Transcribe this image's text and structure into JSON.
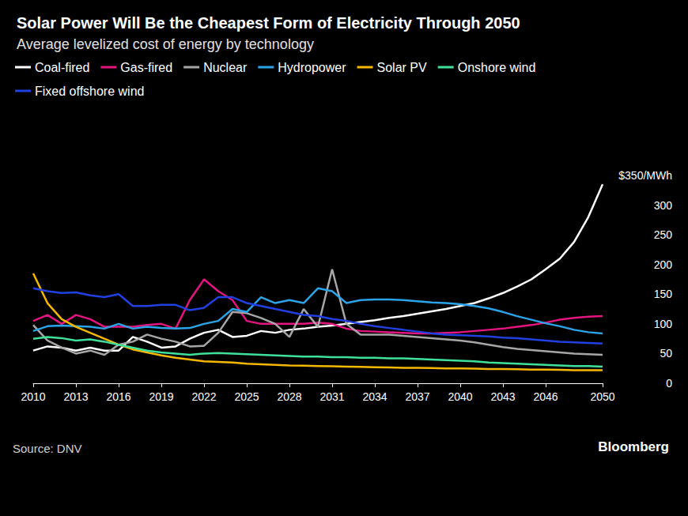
{
  "chart_data": {
    "type": "line",
    "title": "Solar Power Will Be the Cheapest Form of Electricity Through 2050",
    "subtitle": "Average levelized cost of energy by technology",
    "source": "Source: DNV",
    "credit": "Bloomberg",
    "x": [
      2010,
      2011,
      2012,
      2013,
      2014,
      2015,
      2016,
      2017,
      2018,
      2019,
      2020,
      2021,
      2022,
      2023,
      2024,
      2025,
      2026,
      2027,
      2028,
      2029,
      2030,
      2031,
      2032,
      2033,
      2034,
      2035,
      2036,
      2037,
      2038,
      2039,
      2040,
      2041,
      2042,
      2043,
      2044,
      2045,
      2046,
      2047,
      2048,
      2049,
      2050
    ],
    "xlim": [
      2010,
      2050
    ],
    "xticks": [
      2010,
      2013,
      2016,
      2019,
      2022,
      2025,
      2028,
      2031,
      2034,
      2037,
      2040,
      2043,
      2046,
      2050
    ],
    "ylim": [
      0,
      350
    ],
    "yticks": [
      0,
      50,
      100,
      150,
      200,
      250,
      300,
      {
        "value": 350,
        "label": "$350/MWh"
      }
    ],
    "grid": false,
    "legend": "top-left",
    "series": [
      {
        "name": "Coal-fired",
        "color": "#ffffff",
        "values": [
          55,
          62,
          60,
          55,
          60,
          55,
          55,
          78,
          70,
          60,
          62,
          75,
          85,
          90,
          78,
          80,
          88,
          85,
          90,
          92,
          95,
          97,
          100,
          103,
          106,
          110,
          113,
          117,
          121,
          125,
          130,
          135,
          143,
          152,
          163,
          175,
          192,
          210,
          238,
          280,
          335
        ]
      },
      {
        "name": "Gas-fired",
        "color": "#e3157f",
        "values": [
          105,
          115,
          100,
          115,
          108,
          95,
          95,
          95,
          98,
          100,
          92,
          140,
          175,
          155,
          140,
          105,
          100,
          100,
          100,
          100,
          102,
          100,
          92,
          88,
          87,
          86,
          85,
          84,
          84,
          85,
          86,
          88,
          90,
          92,
          95,
          98,
          102,
          107,
          110,
          112,
          113
        ]
      },
      {
        "name": "Nuclear",
        "color": "#a6a6a6",
        "values": [
          98,
          72,
          60,
          50,
          55,
          48,
          65,
          70,
          82,
          75,
          70,
          62,
          63,
          85,
          120,
          118,
          110,
          100,
          78,
          125,
          95,
          192,
          100,
          82,
          82,
          82,
          80,
          78,
          76,
          74,
          72,
          69,
          65,
          61,
          58,
          56,
          54,
          52,
          50,
          49,
          48
        ]
      },
      {
        "name": "Hydropower",
        "color": "#2ba3e8",
        "values": [
          88,
          96,
          97,
          96,
          95,
          92,
          100,
          92,
          95,
          93,
          92,
          93,
          100,
          105,
          125,
          120,
          145,
          135,
          140,
          135,
          160,
          155,
          135,
          140,
          141,
          141,
          140,
          138,
          136,
          135,
          133,
          130,
          126,
          120,
          113,
          107,
          101,
          96,
          90,
          86,
          84
        ]
      },
      {
        "name": "Solar PV",
        "color": "#f5b800",
        "values": [
          185,
          135,
          108,
          95,
          85,
          75,
          65,
          57,
          52,
          47,
          43,
          40,
          37,
          36,
          35,
          33,
          32,
          31,
          30,
          29.5,
          29,
          28.5,
          28,
          27.5,
          27,
          26.5,
          26,
          26,
          25.5,
          25,
          25,
          24.5,
          24,
          24,
          23.5,
          23,
          23,
          22.5,
          22,
          22,
          22
        ]
      },
      {
        "name": "Onshore wind",
        "color": "#3fe09a",
        "values": [
          75,
          78,
          76,
          72,
          74,
          70,
          65,
          60,
          55,
          52,
          50,
          48,
          50,
          51,
          50,
          49,
          48,
          47,
          46,
          45,
          45,
          44,
          44,
          43,
          43,
          42,
          42,
          41,
          40,
          39,
          38,
          37,
          35,
          34,
          33,
          32,
          31,
          30,
          29,
          29,
          28
        ]
      },
      {
        "name": "Fixed offshore wind",
        "color": "#2040e0",
        "values": [
          160,
          155,
          152,
          153,
          148,
          145,
          150,
          130,
          130,
          132,
          132,
          123,
          127,
          145,
          145,
          135,
          130,
          125,
          120,
          115,
          113,
          108,
          105,
          100,
          96,
          93,
          90,
          87,
          84,
          82,
          81,
          80,
          79,
          77,
          76,
          74,
          72,
          70,
          69,
          68,
          67
        ]
      }
    ]
  }
}
